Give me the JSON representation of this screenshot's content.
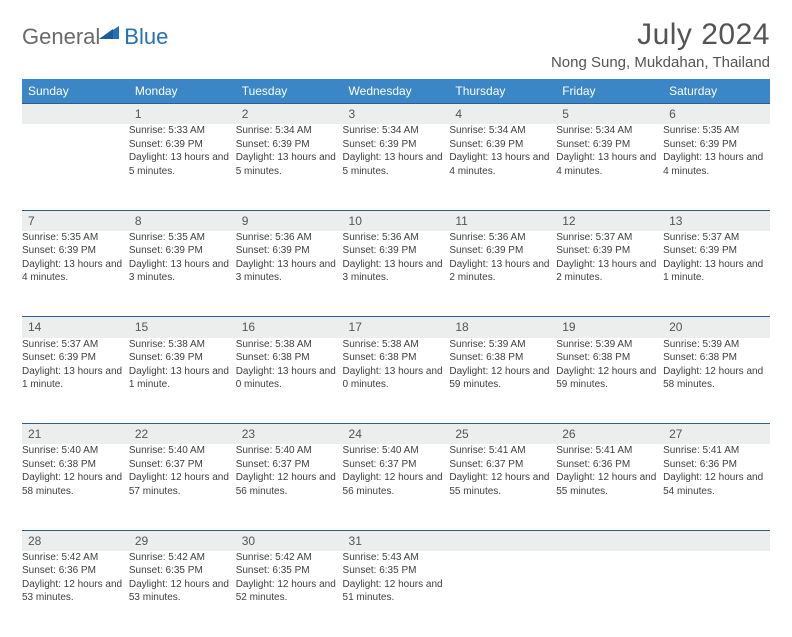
{
  "logo": {
    "text1": "General",
    "text2": "Blue"
  },
  "title": "July 2024",
  "location": "Nong Sung, Mukdahan, Thailand",
  "colors": {
    "header_bg": "#3b86c6",
    "header_text": "#ffffff",
    "daynum_bg": "#eceded",
    "border_top": "#2c5f8f",
    "text": "#3f3f3f",
    "title_text": "#545454",
    "logo_gray": "#6a6a6a",
    "logo_blue": "#2272b5"
  },
  "weekdays": [
    "Sunday",
    "Monday",
    "Tuesday",
    "Wednesday",
    "Thursday",
    "Friday",
    "Saturday"
  ],
  "calendar": {
    "type": "table",
    "first_weekday_index": 1,
    "days": [
      {
        "n": 1,
        "sunrise": "5:33 AM",
        "sunset": "6:39 PM",
        "daylight": "13 hours and 5 minutes."
      },
      {
        "n": 2,
        "sunrise": "5:34 AM",
        "sunset": "6:39 PM",
        "daylight": "13 hours and 5 minutes."
      },
      {
        "n": 3,
        "sunrise": "5:34 AM",
        "sunset": "6:39 PM",
        "daylight": "13 hours and 5 minutes."
      },
      {
        "n": 4,
        "sunrise": "5:34 AM",
        "sunset": "6:39 PM",
        "daylight": "13 hours and 4 minutes."
      },
      {
        "n": 5,
        "sunrise": "5:34 AM",
        "sunset": "6:39 PM",
        "daylight": "13 hours and 4 minutes."
      },
      {
        "n": 6,
        "sunrise": "5:35 AM",
        "sunset": "6:39 PM",
        "daylight": "13 hours and 4 minutes."
      },
      {
        "n": 7,
        "sunrise": "5:35 AM",
        "sunset": "6:39 PM",
        "daylight": "13 hours and 4 minutes."
      },
      {
        "n": 8,
        "sunrise": "5:35 AM",
        "sunset": "6:39 PM",
        "daylight": "13 hours and 3 minutes."
      },
      {
        "n": 9,
        "sunrise": "5:36 AM",
        "sunset": "6:39 PM",
        "daylight": "13 hours and 3 minutes."
      },
      {
        "n": 10,
        "sunrise": "5:36 AM",
        "sunset": "6:39 PM",
        "daylight": "13 hours and 3 minutes."
      },
      {
        "n": 11,
        "sunrise": "5:36 AM",
        "sunset": "6:39 PM",
        "daylight": "13 hours and 2 minutes."
      },
      {
        "n": 12,
        "sunrise": "5:37 AM",
        "sunset": "6:39 PM",
        "daylight": "13 hours and 2 minutes."
      },
      {
        "n": 13,
        "sunrise": "5:37 AM",
        "sunset": "6:39 PM",
        "daylight": "13 hours and 1 minute."
      },
      {
        "n": 14,
        "sunrise": "5:37 AM",
        "sunset": "6:39 PM",
        "daylight": "13 hours and 1 minute."
      },
      {
        "n": 15,
        "sunrise": "5:38 AM",
        "sunset": "6:39 PM",
        "daylight": "13 hours and 1 minute."
      },
      {
        "n": 16,
        "sunrise": "5:38 AM",
        "sunset": "6:38 PM",
        "daylight": "13 hours and 0 minutes."
      },
      {
        "n": 17,
        "sunrise": "5:38 AM",
        "sunset": "6:38 PM",
        "daylight": "13 hours and 0 minutes."
      },
      {
        "n": 18,
        "sunrise": "5:39 AM",
        "sunset": "6:38 PM",
        "daylight": "12 hours and 59 minutes."
      },
      {
        "n": 19,
        "sunrise": "5:39 AM",
        "sunset": "6:38 PM",
        "daylight": "12 hours and 59 minutes."
      },
      {
        "n": 20,
        "sunrise": "5:39 AM",
        "sunset": "6:38 PM",
        "daylight": "12 hours and 58 minutes."
      },
      {
        "n": 21,
        "sunrise": "5:40 AM",
        "sunset": "6:38 PM",
        "daylight": "12 hours and 58 minutes."
      },
      {
        "n": 22,
        "sunrise": "5:40 AM",
        "sunset": "6:37 PM",
        "daylight": "12 hours and 57 minutes."
      },
      {
        "n": 23,
        "sunrise": "5:40 AM",
        "sunset": "6:37 PM",
        "daylight": "12 hours and 56 minutes."
      },
      {
        "n": 24,
        "sunrise": "5:40 AM",
        "sunset": "6:37 PM",
        "daylight": "12 hours and 56 minutes."
      },
      {
        "n": 25,
        "sunrise": "5:41 AM",
        "sunset": "6:37 PM",
        "daylight": "12 hours and 55 minutes."
      },
      {
        "n": 26,
        "sunrise": "5:41 AM",
        "sunset": "6:36 PM",
        "daylight": "12 hours and 55 minutes."
      },
      {
        "n": 27,
        "sunrise": "5:41 AM",
        "sunset": "6:36 PM",
        "daylight": "12 hours and 54 minutes."
      },
      {
        "n": 28,
        "sunrise": "5:42 AM",
        "sunset": "6:36 PM",
        "daylight": "12 hours and 53 minutes."
      },
      {
        "n": 29,
        "sunrise": "5:42 AM",
        "sunset": "6:35 PM",
        "daylight": "12 hours and 53 minutes."
      },
      {
        "n": 30,
        "sunrise": "5:42 AM",
        "sunset": "6:35 PM",
        "daylight": "12 hours and 52 minutes."
      },
      {
        "n": 31,
        "sunrise": "5:43 AM",
        "sunset": "6:35 PM",
        "daylight": "12 hours and 51 minutes."
      }
    ]
  },
  "labels": {
    "sunrise": "Sunrise:",
    "sunset": "Sunset:",
    "daylight": "Daylight:"
  }
}
